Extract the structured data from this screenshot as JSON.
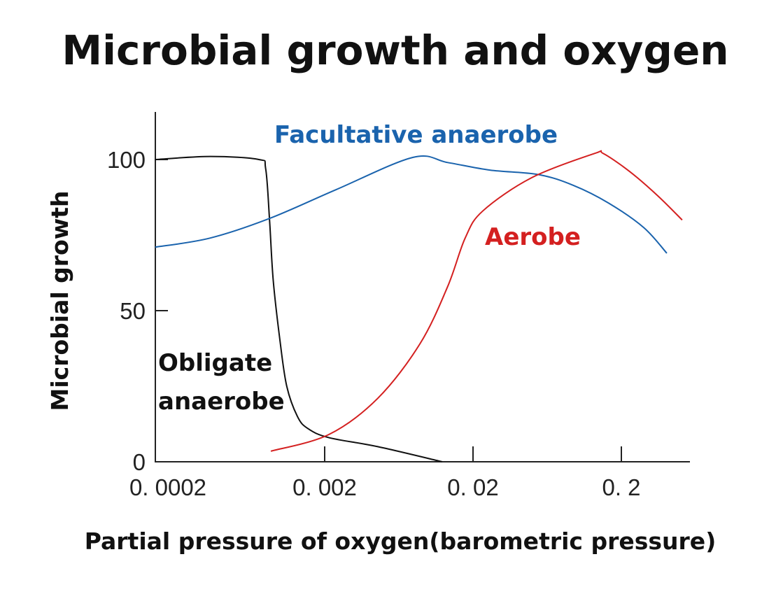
{
  "chart_data": {
    "type": "line",
    "title": "Microbial growth and oxygen",
    "xlabel": "Partial pressure of oxygen(barometric pressure)",
    "ylabel": "Microbial growth",
    "xscale": "log",
    "xlim": [
      0.000144,
      0.55
    ],
    "ylim": [
      0,
      110
    ],
    "x_ticks": [
      {
        "value": 0.0002,
        "label": "0. 0002"
      },
      {
        "value": 0.002,
        "label": "0. 002"
      },
      {
        "value": 0.02,
        "label": "0. 02"
      },
      {
        "value": 0.2,
        "label": "0. 2"
      }
    ],
    "y_ticks": [
      {
        "value": 0,
        "label": "0"
      },
      {
        "value": 50,
        "label": "50"
      },
      {
        "value": 100,
        "label": "100"
      }
    ],
    "grid": false,
    "legend": "inline labels",
    "series": [
      {
        "name": "Obligate anaerobe",
        "label_lines": [
          "Obligate",
          "anaerobe"
        ],
        "color": "#111111",
        "points": [
          [
            0.000144,
            100
          ],
          [
            0.00034,
            101
          ],
          [
            0.00072,
            100
          ],
          [
            0.0008,
            97
          ],
          [
            0.00085,
            80
          ],
          [
            0.0009,
            60
          ],
          [
            0.001,
            40
          ],
          [
            0.00111,
            25
          ],
          [
            0.00131,
            15
          ],
          [
            0.00154,
            11
          ],
          [
            0.00213,
            8
          ],
          [
            0.00456,
            5
          ],
          [
            0.0124,
            0
          ]
        ]
      },
      {
        "name": "Facultative anaerobe",
        "label_lines": [
          "Facultative anaerobe"
        ],
        "color": "#1a63ad",
        "points": [
          [
            0.000144,
            71
          ],
          [
            0.000337,
            74
          ],
          [
            0.00085,
            80.5
          ],
          [
            0.00238,
            90
          ],
          [
            0.00785,
            100.7
          ],
          [
            0.0135,
            99
          ],
          [
            0.026,
            96.5
          ],
          [
            0.0555,
            95
          ],
          [
            0.0955,
            91.4
          ],
          [
            0.164,
            85.6
          ],
          [
            0.283,
            77.5
          ],
          [
            0.405,
            69
          ]
        ]
      },
      {
        "name": "Aerobe",
        "label_lines": [
          "Aerobe"
        ],
        "color": "#d42020",
        "points": [
          [
            0.000867,
            3.5
          ],
          [
            0.00213,
            9
          ],
          [
            0.00456,
            21
          ],
          [
            0.00877,
            39
          ],
          [
            0.0135,
            58
          ],
          [
            0.0177,
            74
          ],
          [
            0.0233,
            83
          ],
          [
            0.0498,
            94
          ],
          [
            0.132,
            102
          ],
          [
            0.151,
            102
          ],
          [
            0.228,
            96
          ],
          [
            0.352,
            88
          ],
          [
            0.514,
            80
          ]
        ]
      }
    ]
  }
}
